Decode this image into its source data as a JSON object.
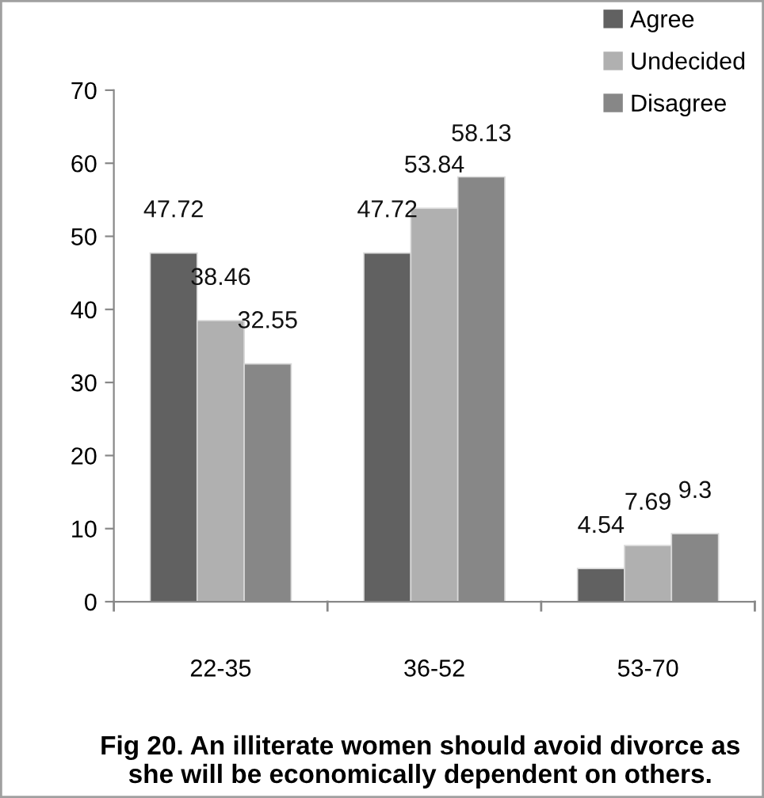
{
  "chart_data": {
    "type": "bar",
    "title": "Fig 20. An illiterate women should avoid divorce as she will be economically dependent on others.",
    "categories": [
      "22-35",
      "36-52",
      "53-70"
    ],
    "series": [
      {
        "name": "Agree",
        "color": "#616161",
        "values": [
          47.72,
          47.72,
          4.54
        ]
      },
      {
        "name": "Undecided",
        "color": "#b0b0b0",
        "values": [
          38.46,
          53.84,
          7.69
        ]
      },
      {
        "name": "Disagree",
        "color": "#878787",
        "values": [
          32.55,
          58.13,
          9.3
        ]
      }
    ],
    "ylim": [
      0,
      70
    ],
    "yticks": [
      0,
      10,
      20,
      30,
      40,
      50,
      60,
      70
    ],
    "grid": false,
    "legend": "top right",
    "data_labels": true
  }
}
